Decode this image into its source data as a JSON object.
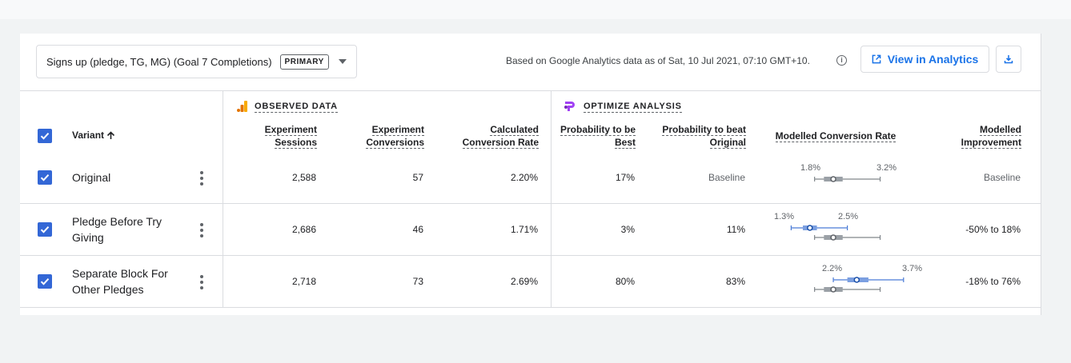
{
  "goal": {
    "label": "Signs up (pledge, TG, MG) (Goal 7 Completions)",
    "badge": "PRIMARY",
    "dropdown_icon": "caret-down-icon"
  },
  "based_on": "Based on Google Analytics data as of Sat, 10 Jul 2021, 07:10 GMT+10.",
  "view_button": {
    "label": "View in Analytics",
    "icon": "open-external-icon"
  },
  "download_icon": "download-icon",
  "sections": {
    "observed": "OBSERVED DATA",
    "optimize": "OPTIMIZE ANALYSIS"
  },
  "columns": {
    "variant": "Variant",
    "sessions": [
      "Experiment",
      "Sessions"
    ],
    "conversions": [
      "Experiment",
      "Conversions"
    ],
    "rate": [
      "Calculated",
      "Conversion Rate"
    ],
    "prob_best": [
      "Probability to be",
      "Best"
    ],
    "prob_beat": [
      "Probability to beat",
      "Original"
    ],
    "modelled_rate": "Modelled Conversion Rate",
    "improvement": [
      "Modelled",
      "Improvement"
    ]
  },
  "rows": [
    {
      "name": [
        "Original"
      ],
      "sessions": "2,588",
      "conversions": "57",
      "rate": "2.20%",
      "prob_best": "17%",
      "prob_beat": "Baseline",
      "improvement": "Baseline",
      "ci_low_label": "1.8%",
      "ci_high_label": "3.2%",
      "ci": {
        "low": 1.8,
        "q1": 2.0,
        "median": 2.2,
        "q3": 2.4,
        "high": 3.2
      }
    },
    {
      "name": [
        "Pledge Before Try",
        "Giving"
      ],
      "sessions": "2,686",
      "conversions": "46",
      "rate": "1.71%",
      "prob_best": "3%",
      "prob_beat": "11%",
      "improvement": "-50% to 18%",
      "ci_low_label": "1.3%",
      "ci_high_label": "2.5%",
      "ci": {
        "low": 1.3,
        "q1": 1.55,
        "median": 1.7,
        "q3": 1.85,
        "high": 2.5
      }
    },
    {
      "name": [
        "Separate Block For",
        "Other Pledges"
      ],
      "sessions": "2,718",
      "conversions": "73",
      "rate": "2.69%",
      "prob_best": "80%",
      "prob_beat": "83%",
      "improvement": "-18% to 76%",
      "ci_low_label": "2.2%",
      "ci_high_label": "3.7%",
      "ci": {
        "low": 2.2,
        "q1": 2.5,
        "median": 2.7,
        "q3": 2.95,
        "high": 3.7
      }
    }
  ],
  "colors": {
    "accent": "#1a73e8",
    "checkbox": "#3367d6",
    "variant_bar": "#7b9fe0",
    "baseline_bar": "#9aa0a6"
  }
}
